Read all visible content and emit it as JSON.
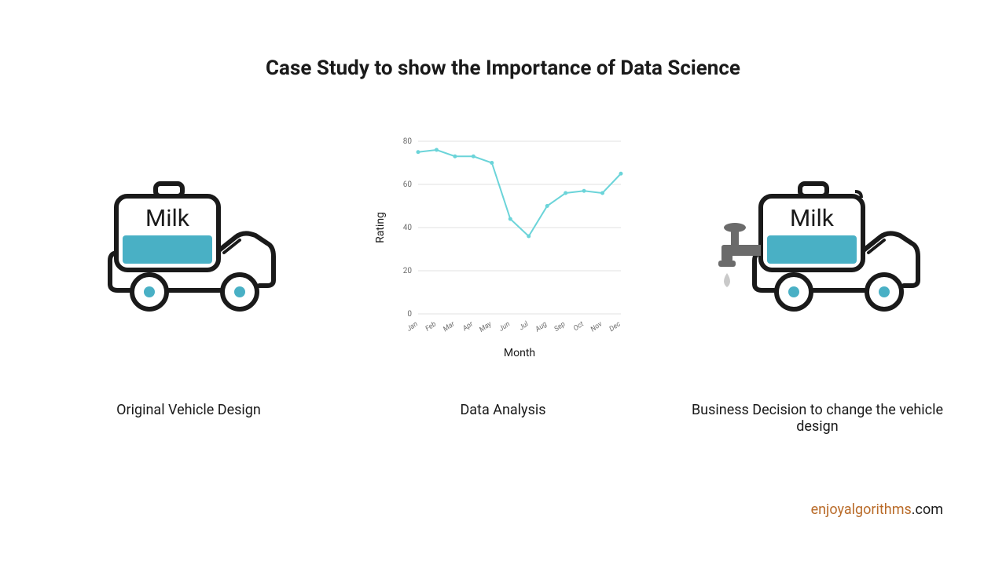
{
  "title": "Case Study to show the Importance of Data Science",
  "panels": {
    "left": {
      "caption": "Original Vehicle Design",
      "tank_label": "Milk",
      "vehicle_stroke": "#1a1a1a",
      "tank_fill": "#49b0c5",
      "wheel_dot_fill": "#49b0c5"
    },
    "center": {
      "caption": "Data Analysis",
      "chart": {
        "type": "line",
        "x_labels": [
          "Jan",
          "Feb",
          "Mar",
          "Apr",
          "May",
          "Jun",
          "Jul",
          "Aug",
          "Sep",
          "Oct",
          "Nov",
          "Dec"
        ],
        "y_values": [
          75,
          76,
          73,
          73,
          70,
          44,
          36,
          50,
          56,
          57,
          56,
          65
        ],
        "ylim": [
          0,
          80
        ],
        "ytick_step": 20,
        "xlabel": "Month",
        "ylabel": "Rating",
        "line_color": "#6bd4d9",
        "dot_color": "#6bd4d9",
        "dot_radius": 2.5,
        "axis_color": "#6b6b6b",
        "grid_color": "#e0e0e0",
        "background_color": "#ffffff",
        "label_fontsize": 14,
        "tick_fontsize": 10,
        "line_width": 2
      }
    },
    "right": {
      "caption": "Business Decision to change the vehicle design",
      "tank_label": "Milk",
      "vehicle_stroke": "#1a1a1a",
      "tank_fill": "#49b0c5",
      "wheel_dot_fill": "#49b0c5",
      "faucet_color": "#6b6b6b",
      "drop_color": "#c9c9c9"
    }
  },
  "attribution": {
    "brand": "enjoyalgorithms",
    "domain": ".com",
    "brand_color": "#b96b29",
    "domain_color": "#1a1a1a"
  }
}
